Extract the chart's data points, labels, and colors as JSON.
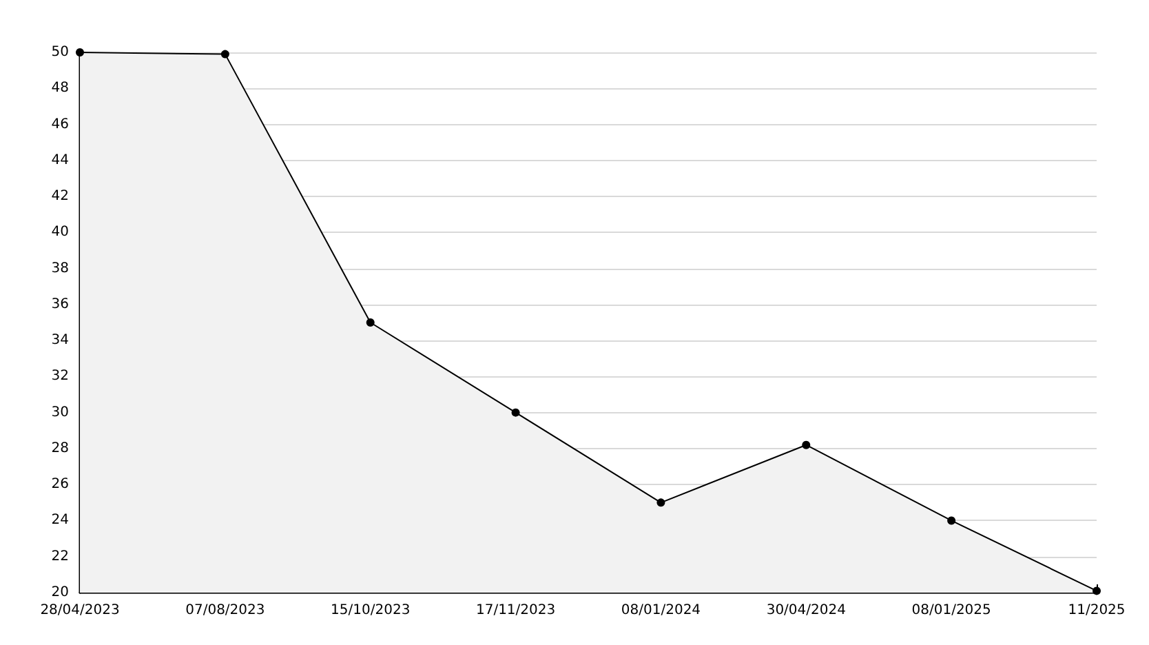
{
  "chart_data": {
    "type": "area",
    "categories": [
      "28/04/2023",
      "07/08/2023",
      "15/10/2023",
      "17/11/2023",
      "08/01/2024",
      "30/04/2024",
      "08/01/2025",
      "11/2025"
    ],
    "series": [
      {
        "color": "#000000",
        "values": [
          50,
          49.9,
          35,
          30,
          25,
          28.2,
          24,
          20.1
        ]
      }
    ],
    "ylim": [
      20,
      50
    ],
    "yticks": [
      20,
      22,
      24,
      26,
      28,
      30,
      32,
      34,
      36,
      38,
      40,
      42,
      44,
      46,
      48,
      50
    ],
    "grid": "y",
    "marker": "circle",
    "line_style": "solid"
  }
}
